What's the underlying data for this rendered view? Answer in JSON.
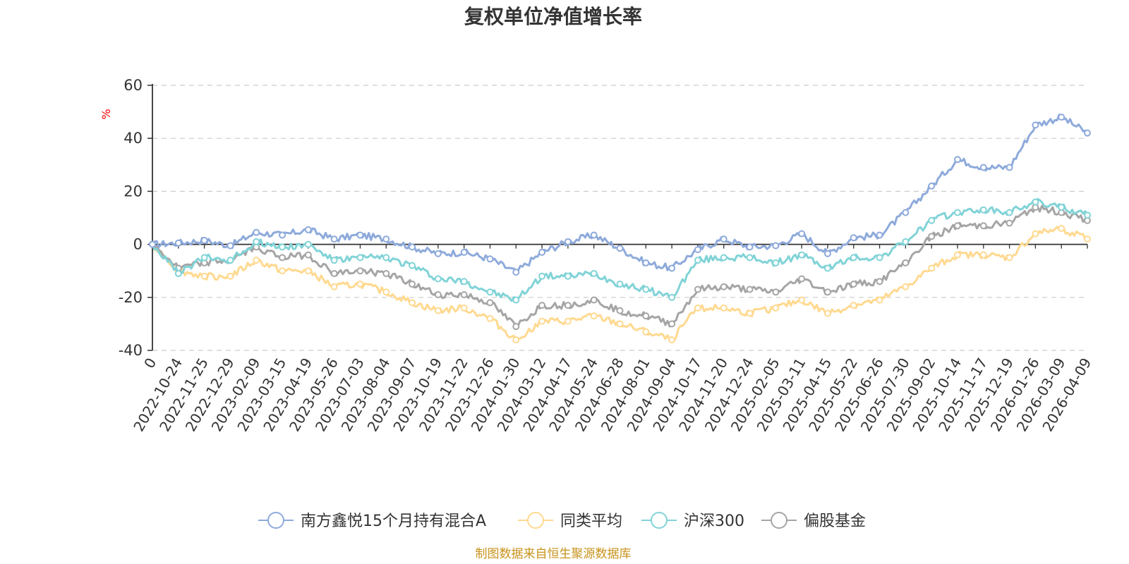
{
  "chart_data": {
    "type": "line",
    "title": "复权单位净值增长率",
    "ylabel": "%",
    "ylim": [
      -40,
      60
    ],
    "yticks": [
      -40,
      -20,
      0,
      20,
      40,
      60
    ],
    "grid": true,
    "legend_position": "bottom",
    "x_labels": [
      "0",
      "2022-10-24",
      "2022-11-25",
      "2022-12-29",
      "2023-02-09",
      "2023-03-15",
      "2023-04-19",
      "2023-05-26",
      "2023-07-03",
      "2023-08-04",
      "2023-09-07",
      "2023-10-19",
      "2023-11-22",
      "2023-12-26",
      "2024-01-30",
      "2024-03-12",
      "2024-04-17",
      "2024-05-24",
      "2024-06-28",
      "2024-08-01",
      "2024-09-04",
      "2024-10-17",
      "2024-11-20",
      "2024-12-24",
      "2025-02-05",
      "2025-03-11",
      "2025-04-15",
      "2025-05-22",
      "2025-06-26",
      "2025-07-30",
      "2025-09-02",
      "2025-10-14",
      "2025-11-17",
      "2025-12-19",
      "2026-01-26",
      "2026-03-09",
      "2026-04-09"
    ],
    "series": [
      {
        "name": "南方鑫悦15个月持有混合A",
        "color": "#8eaadb",
        "values": [
          0,
          0.5,
          1.5,
          -0.5,
          4.5,
          3.5,
          5.5,
          2,
          3.5,
          2,
          -1,
          -3.5,
          -3,
          -5.5,
          -10.5,
          -3,
          1,
          3.5,
          -1.5,
          -7,
          -9,
          -2,
          2,
          -1,
          -0.5,
          4,
          -3.5,
          2.5,
          3.5,
          12,
          22,
          32,
          29,
          29,
          45,
          48,
          42
        ]
      },
      {
        "name": "同类平均",
        "color": "#ffd990",
        "values": [
          0,
          -10,
          -12,
          -12,
          -6,
          -10,
          -10,
          -16,
          -15,
          -18,
          -22,
          -25,
          -24,
          -28,
          -36,
          -29,
          -29,
          -27,
          -30,
          -33,
          -36,
          -24,
          -24,
          -26,
          -24,
          -21,
          -26,
          -23,
          -21,
          -16,
          -9,
          -4,
          -4,
          -5,
          4,
          6,
          2
        ]
      },
      {
        "name": "沪深300",
        "color": "#81d3d7",
        "values": [
          0,
          -11,
          -5,
          -6,
          1,
          -1,
          0,
          -6,
          -5,
          -5,
          -8,
          -13,
          -14,
          -18,
          -21,
          -12,
          -12,
          -11,
          -15,
          -17,
          -20,
          -6,
          -5,
          -5,
          -7,
          -4,
          -9,
          -5,
          -5,
          1,
          9,
          12,
          13,
          12,
          16,
          14,
          11
        ]
      },
      {
        "name": "偏股基金",
        "color": "#a5a5a5",
        "values": [
          0,
          -9,
          -7,
          -6,
          -1,
          -5,
          -4,
          -11,
          -10,
          -11,
          -15,
          -19,
          -19,
          -22,
          -31,
          -23,
          -23,
          -21,
          -25,
          -27,
          -30,
          -17,
          -16,
          -17,
          -18,
          -13,
          -18,
          -15,
          -14,
          -7,
          3,
          7,
          7,
          8,
          14,
          12,
          9
        ]
      }
    ]
  },
  "source_note": "制图数据来自恒生聚源数据库"
}
